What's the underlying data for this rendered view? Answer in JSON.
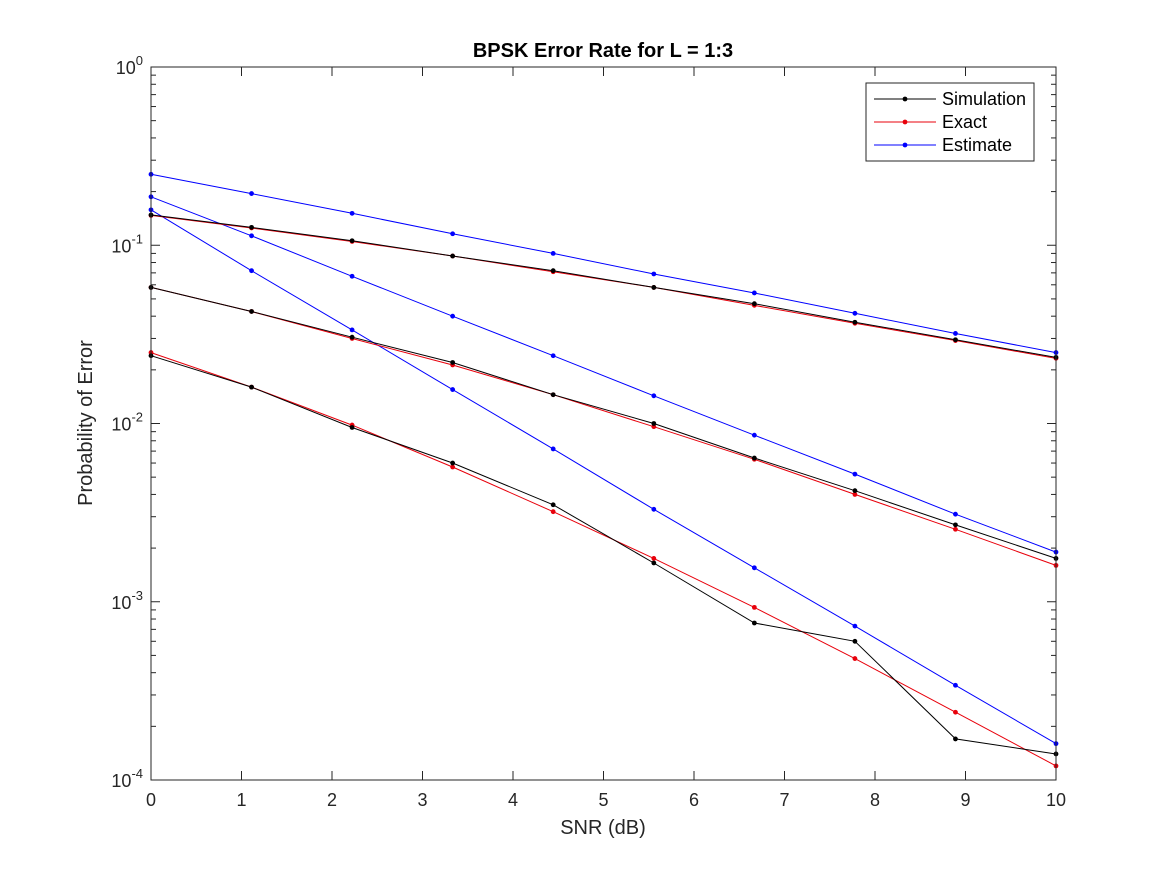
{
  "chart_data": {
    "type": "line",
    "title": "BPSK Error Rate for L = 1:3",
    "xlabel": "SNR (dB)",
    "ylabel": "Probability of Error",
    "yscale": "log",
    "xlim": [
      0,
      10
    ],
    "ylim": [
      0.0001,
      1
    ],
    "grid": false,
    "legend_position": "top-right",
    "x_ticks": [
      "0",
      "1",
      "2",
      "3",
      "4",
      "5",
      "6",
      "7",
      "8",
      "9",
      "10"
    ],
    "y_ticks": [
      {
        "base": "10",
        "exp": "-4"
      },
      {
        "base": "10",
        "exp": "-3"
      },
      {
        "base": "10",
        "exp": "-2"
      },
      {
        "base": "10",
        "exp": "-1"
      },
      {
        "base": "10",
        "exp": "0"
      }
    ],
    "x": [
      0,
      1.111,
      2.222,
      3.333,
      4.444,
      5.556,
      6.667,
      7.778,
      8.889,
      10
    ],
    "legend": [
      {
        "label": "Simulation",
        "color": "#000000"
      },
      {
        "label": "Exact",
        "color": "#e8000b"
      },
      {
        "label": "Estimate",
        "color": "#0000ff"
      }
    ],
    "series": [
      {
        "name": "Simulation",
        "group": "L=1",
        "color": "#000000",
        "values": [
          0.148,
          0.126,
          0.106,
          0.087,
          0.072,
          0.058,
          0.047,
          0.037,
          0.0295,
          0.0235
        ]
      },
      {
        "name": "Simulation",
        "group": "L=2",
        "color": "#000000",
        "values": [
          0.058,
          0.0425,
          0.0305,
          0.022,
          0.0145,
          0.01,
          0.0064,
          0.0042,
          0.0027,
          0.00175
        ]
      },
      {
        "name": "Simulation",
        "group": "L=3",
        "color": "#000000",
        "values": [
          0.024,
          0.016,
          0.0095,
          0.006,
          0.0035,
          0.00165,
          0.00076,
          0.0006,
          0.00017,
          0.00014
        ]
      },
      {
        "name": "Exact",
        "group": "L=1",
        "color": "#e8000b",
        "values": [
          0.147,
          0.125,
          0.105,
          0.087,
          0.071,
          0.058,
          0.046,
          0.0365,
          0.0292,
          0.0232
        ]
      },
      {
        "name": "Exact",
        "group": "L=2",
        "color": "#e8000b",
        "values": [
          0.058,
          0.0425,
          0.03,
          0.0213,
          0.0145,
          0.0096,
          0.0063,
          0.004,
          0.00255,
          0.0016
        ]
      },
      {
        "name": "Exact",
        "group": "L=3",
        "color": "#e8000b",
        "values": [
          0.025,
          0.016,
          0.0098,
          0.0057,
          0.0032,
          0.00175,
          0.00093,
          0.00048,
          0.00024,
          0.00012
        ]
      },
      {
        "name": "Estimate",
        "group": "L=1",
        "color": "#0000ff",
        "values": [
          0.25,
          0.195,
          0.151,
          0.116,
          0.09,
          0.069,
          0.054,
          0.0415,
          0.032,
          0.025
        ]
      },
      {
        "name": "Estimate",
        "group": "L=2",
        "color": "#0000ff",
        "values": [
          0.187,
          0.113,
          0.067,
          0.04,
          0.024,
          0.0143,
          0.0086,
          0.0052,
          0.0031,
          0.0019
        ]
      },
      {
        "name": "Estimate",
        "group": "L=3",
        "color": "#0000ff",
        "values": [
          0.158,
          0.072,
          0.0335,
          0.0155,
          0.0072,
          0.0033,
          0.00155,
          0.00073,
          0.00034,
          0.00016
        ]
      }
    ]
  }
}
